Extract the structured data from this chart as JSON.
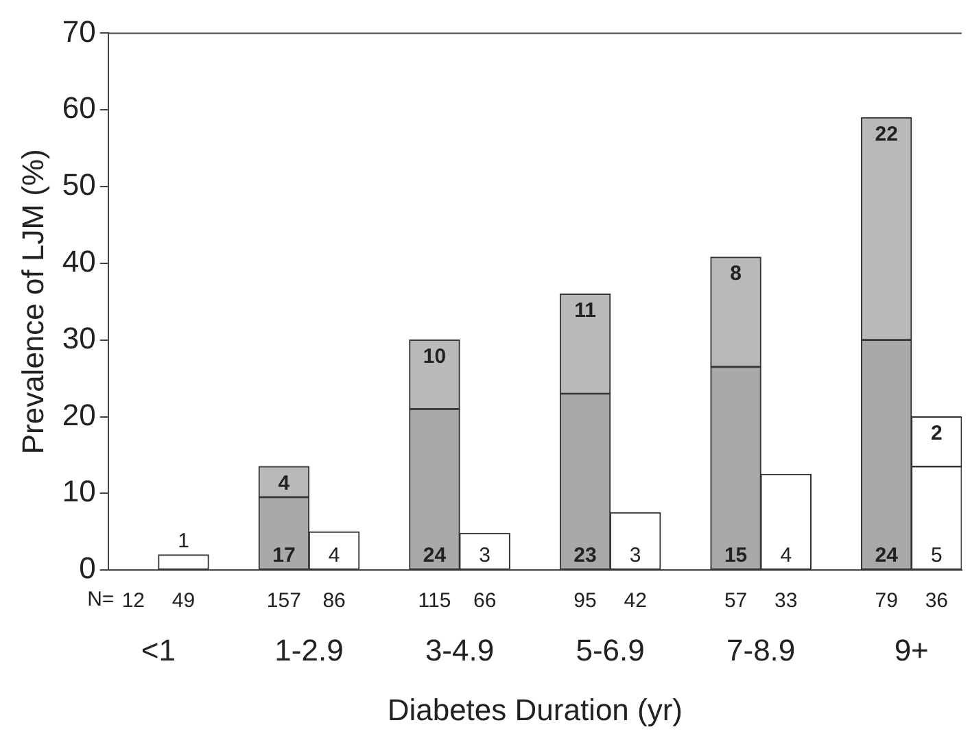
{
  "chart_data": {
    "type": "bar",
    "stacked": true,
    "xlabel": "Diabetes Duration (yr)",
    "ylabel": "Prevalence of LJM (%)",
    "categories": [
      "12",
      "49",
      null,
      "157",
      "86",
      null,
      "115",
      "66",
      null,
      "95",
      "42",
      null,
      "57",
      "33",
      null,
      "79",
      "36"
    ],
    "ylim": [
      0,
      70
    ],
    "yticks": [
      0,
      10,
      20,
      30,
      40,
      50,
      60,
      70
    ],
    "grid": false,
    "legend": false,
    "series": [
      {
        "values": [
          0,
          2,
          null,
          9.5,
          5,
          null,
          21,
          4.8,
          null,
          23,
          7.5,
          null,
          26.5,
          12.5,
          null,
          30,
          13.5
        ],
        "colors": [
          "#a9a9a9",
          "#ffffff",
          null,
          "#a9a9a9",
          "#ffffff",
          null,
          "#a9a9a9",
          "#ffffff",
          null,
          "#a9a9a9",
          "#ffffff",
          null,
          "#a9a9a9",
          "#ffffff",
          null,
          "#a9a9a9",
          "#ffffff"
        ]
      },
      {
        "values": [
          null,
          null,
          null,
          4,
          null,
          null,
          9,
          null,
          null,
          13,
          null,
          null,
          14.3,
          null,
          null,
          29,
          6.5
        ],
        "colors": [
          null,
          null,
          null,
          "#b9b9b9",
          null,
          null,
          "#b9b9b9",
          null,
          null,
          "#b9b9b9",
          null,
          null,
          "#b9b9b9",
          null,
          null,
          "#b9b9b9",
          "#ffffff"
        ]
      }
    ],
    "annotations": [
      "N=",
      "<1",
      "1-2.9",
      "3-4.9",
      "5-6.9",
      "7-8.9",
      "9+",
      "1",
      "17",
      "4",
      "24",
      "3",
      "23",
      "3",
      "15",
      "4",
      "24",
      "5",
      "4",
      "10",
      "11",
      "8",
      "22",
      "2"
    ]
  }
}
